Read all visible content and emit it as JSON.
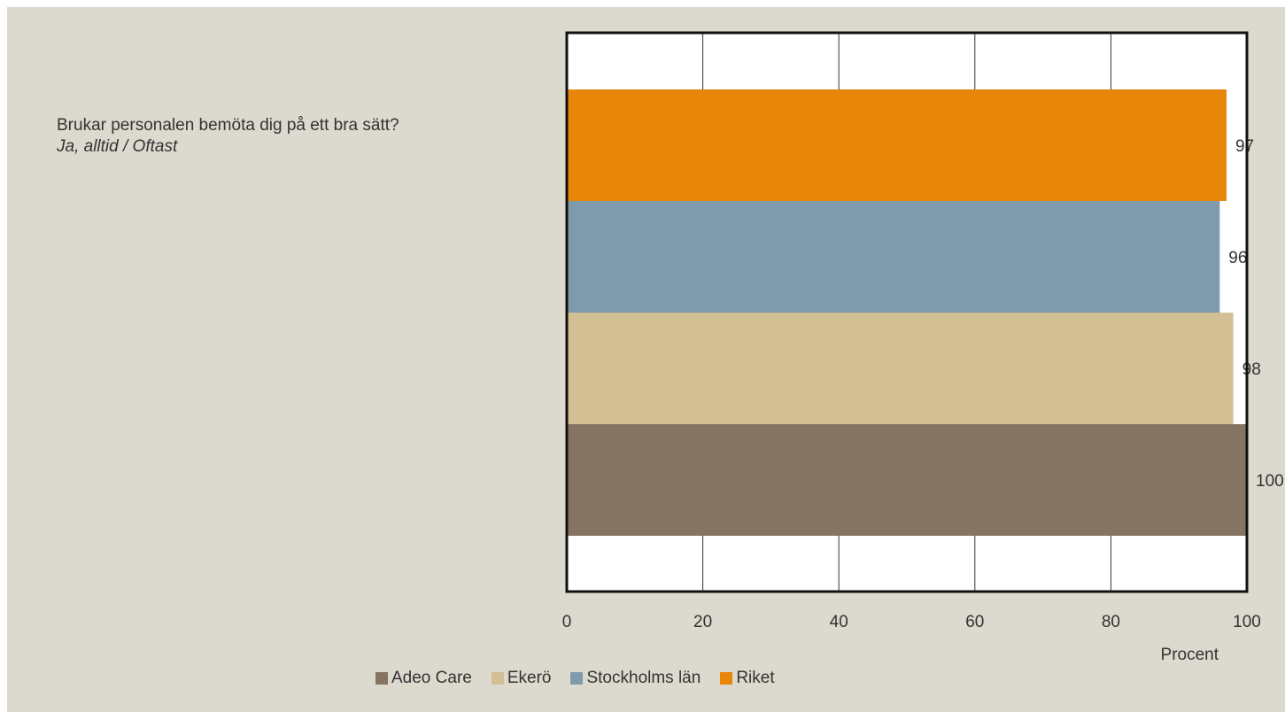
{
  "question": {
    "text": "Brukar personalen bemöta dig på ett bra sätt?",
    "answer": "Ja, alltid / Oftast"
  },
  "chart_data": {
    "type": "bar",
    "orientation": "horizontal",
    "categories": [
      "Riket",
      "Stockholms län",
      "Ekerö",
      "Adeo Care"
    ],
    "values": [
      97,
      96,
      98,
      100
    ],
    "colors": [
      "#e8860a",
      "#7f9aab",
      "#d2bf94",
      "#857462"
    ],
    "xlabel": "Procent",
    "xlim": [
      0,
      100
    ],
    "xticks": [
      0,
      20,
      40,
      60,
      80,
      100
    ],
    "grid": true,
    "legend_position": "bottom",
    "legend": [
      {
        "label": "Adeo Care",
        "color": "#857462"
      },
      {
        "label": "Ekerö",
        "color": "#d2bf94"
      },
      {
        "label": "Stockholms län",
        "color": "#7f9aab"
      },
      {
        "label": "Riket",
        "color": "#e8860a"
      }
    ]
  }
}
